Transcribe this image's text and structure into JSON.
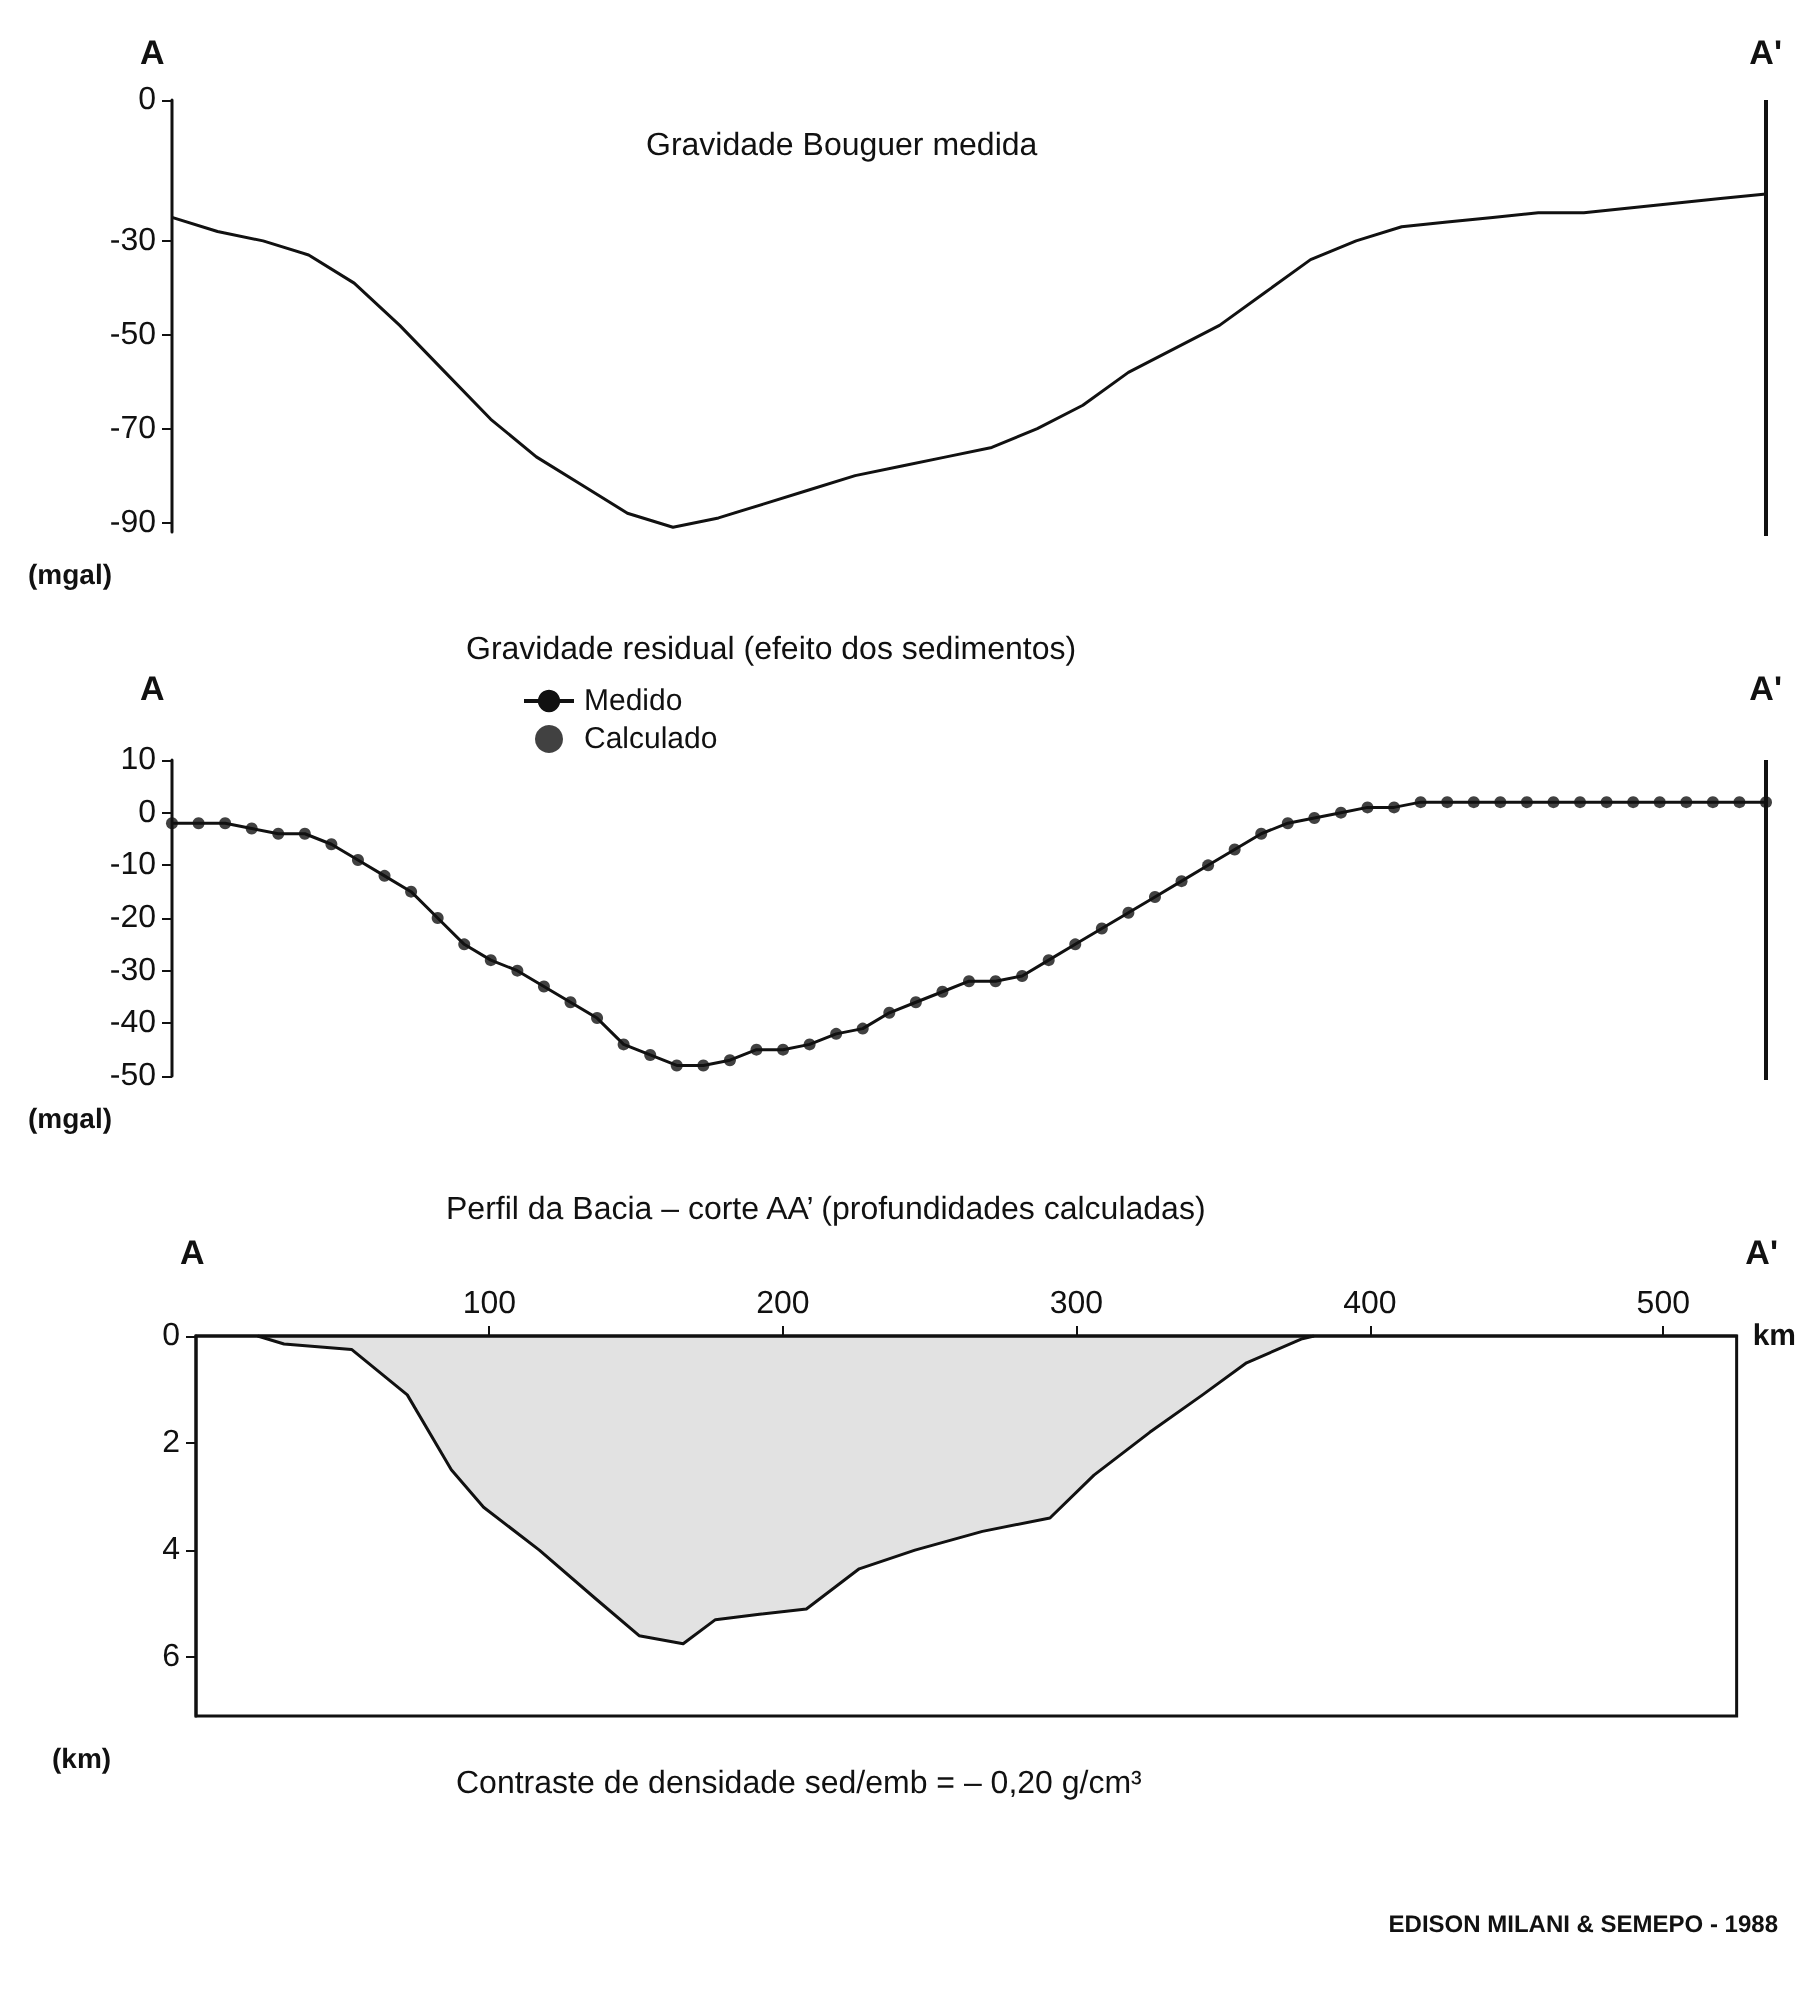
{
  "chart_data": [
    {
      "type": "line",
      "title": "Gravidade Bouguer medida",
      "ylabel": "(mgal)",
      "annotations": [
        "A",
        "A'"
      ],
      "categories": [
        null,
        null,
        null,
        null,
        null,
        null,
        null,
        null,
        null,
        null,
        null,
        null,
        null,
        null,
        null,
        null,
        null,
        null,
        null,
        null,
        null,
        null,
        null,
        null,
        null,
        null,
        null,
        null,
        null,
        null,
        null,
        null,
        null,
        null,
        null,
        null
      ],
      "series": [
        {
          "color": "#111111",
          "values": [
            -25,
            -28,
            -30,
            -33,
            -39,
            -48,
            -58,
            -68,
            -76,
            -82,
            -88,
            -91,
            -89,
            -86,
            -83,
            -80,
            -78,
            -76,
            -74,
            -70,
            -65,
            -58,
            -53,
            -48,
            -41,
            -34,
            -30,
            -27,
            -26,
            -25,
            -24,
            -24,
            -23,
            -22,
            -21,
            -20
          ]
        }
      ],
      "ylim": [
        -92,
        0
      ],
      "yticks": [
        0,
        -30,
        -50,
        -70,
        -90
      ],
      "tick_labels": "y",
      "grid": false,
      "legend": false
    },
    {
      "type": "line",
      "title": "Gravidade residual (efeito dos sedimentos)",
      "ylabel": "(mgal)",
      "annotations": [
        "A",
        "A'"
      ],
      "categories": [
        null,
        null,
        null,
        null,
        null,
        null,
        null,
        null,
        null,
        null,
        null,
        null,
        null,
        null,
        null,
        null,
        null,
        null,
        null,
        null,
        null,
        null,
        null,
        null,
        null,
        null,
        null,
        null,
        null,
        null,
        null,
        null,
        null,
        null,
        null,
        null,
        null,
        null,
        null,
        null,
        null,
        null,
        null,
        null,
        null,
        null,
        null,
        null,
        null,
        null,
        null,
        null,
        null,
        null,
        null,
        null,
        null,
        null,
        null,
        null,
        null
      ],
      "series": [
        {
          "name": "Medido",
          "color": "#111111",
          "values": [
            -2,
            -2,
            -2,
            -3,
            -4,
            -4,
            -6,
            -9,
            -12,
            -15,
            -20,
            -25,
            -28,
            -30,
            -33,
            -36,
            -39,
            -44,
            -46,
            -48,
            -48,
            -47,
            -45,
            -45,
            -44,
            -42,
            -41,
            -38,
            -36,
            -34,
            -32,
            -32,
            -31,
            -28,
            -25,
            -22,
            -19,
            -16,
            -13,
            -10,
            -7,
            -4,
            -2,
            -1,
            0,
            1,
            1,
            2,
            2,
            2,
            2,
            2,
            2,
            2,
            2,
            2,
            2,
            2,
            2,
            2,
            2
          ]
        },
        {
          "name": "Calculado",
          "type": "scatter",
          "marker": "circle",
          "color": "#111111",
          "values": [
            -2,
            -2,
            -2,
            -3,
            -4,
            -4,
            -6,
            -9,
            -12,
            -15,
            -20,
            -25,
            -28,
            -30,
            -33,
            -36,
            -39,
            -44,
            -46,
            -48,
            -48,
            -47,
            -45,
            -45,
            -44,
            -42,
            -41,
            -38,
            -36,
            -34,
            -32,
            -32,
            -31,
            -28,
            -25,
            -22,
            -19,
            -16,
            -13,
            -10,
            -7,
            -4,
            -2,
            -1,
            0,
            1,
            1,
            2,
            2,
            2,
            2,
            2,
            2,
            2,
            2,
            2,
            2,
            2,
            2,
            2,
            2
          ]
        }
      ],
      "ylim": [
        -50,
        10
      ],
      "yticks": [
        10,
        0,
        -10,
        -20,
        -30,
        -40,
        -50
      ],
      "tick_labels": "y",
      "grid": false,
      "legend": "top left"
    },
    {
      "type": "area",
      "title": "Perfil da Bacia – corte AA’ (profundidades calculadas)",
      "xlabel": "km",
      "ylabel": "(km)",
      "annotations": [
        "A",
        "A'",
        "Contraste de densidade sed/emb = – 0,20 g/cm³",
        "EDISON MILANI & SEMEPO - 1988"
      ],
      "x": [
        21,
        30,
        53,
        72,
        87,
        98,
        117,
        136,
        151,
        166,
        177,
        192,
        208,
        226,
        245,
        268,
        291,
        306,
        325,
        343,
        358,
        377,
        381
      ],
      "series": [
        {
          "color": "#111111",
          "values": [
            0,
            0.15,
            0.25,
            1.1,
            2.5,
            3.2,
            4.0,
            4.9,
            5.6,
            5.75,
            5.3,
            5.2,
            5.1,
            4.35,
            4.0,
            3.65,
            3.4,
            2.6,
            1.8,
            1.1,
            0.5,
            0.05,
            0
          ]
        }
      ],
      "xlim": [
        0,
        525
      ],
      "xticks": [
        100,
        200,
        300,
        400,
        500
      ],
      "ylim": [
        7.1,
        0
      ],
      "yticks": [
        0,
        2,
        4,
        6
      ],
      "grid": false,
      "legend": false
    }
  ]
}
